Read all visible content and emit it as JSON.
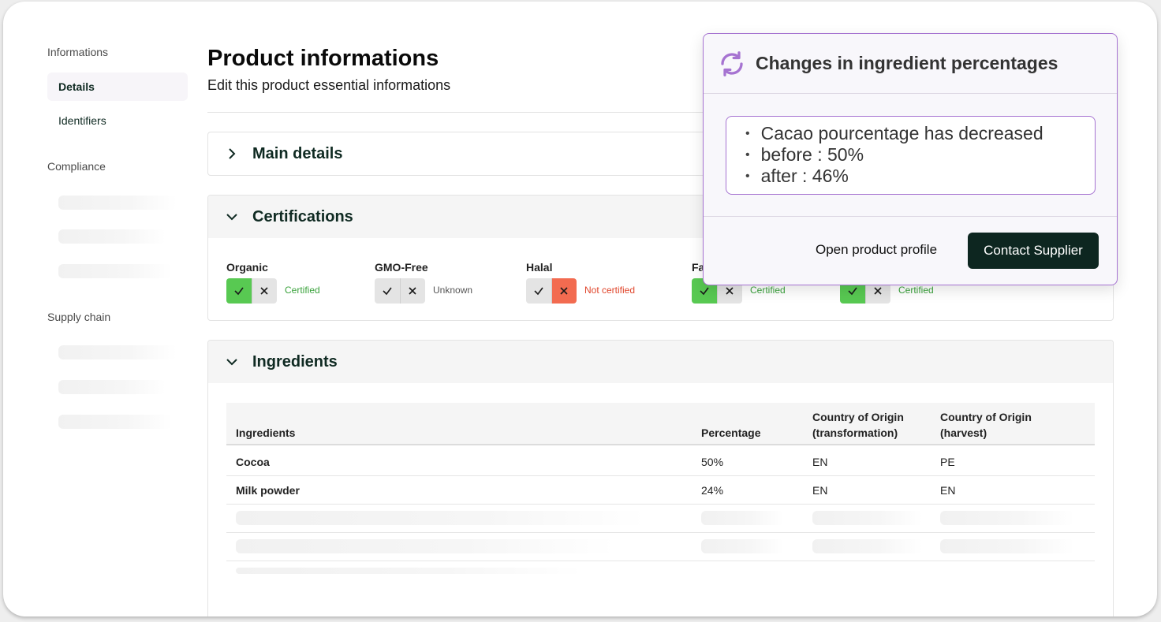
{
  "sidebar": {
    "sections": [
      {
        "label": "Informations",
        "items": [
          "Details",
          "Identifiers"
        ]
      },
      {
        "label": "Compliance"
      },
      {
        "label": "Supply chain"
      }
    ]
  },
  "header": {
    "title": "Product informations",
    "subtitle": "Edit this product essential informations"
  },
  "cards": {
    "main_details": "Main details",
    "certifications": "Certifications",
    "ingredients": "Ingredients"
  },
  "certifications": [
    {
      "label": "Organic",
      "status": "Certified",
      "state": "yes"
    },
    {
      "label": "GMO-Free",
      "status": "Unknown",
      "state": "unknown"
    },
    {
      "label": "Halal",
      "status": "Not certified",
      "state": "no"
    },
    {
      "label": "Fa",
      "status": "Certified",
      "state": "yes"
    },
    {
      "label": "",
      "status": "Certified",
      "state": "yes"
    }
  ],
  "ingredients_table": {
    "headers": [
      "Ingredients",
      "Percentage",
      "Country of Origin (transformation)",
      "Country of Origin (harvest)"
    ],
    "header_lines": {
      "transformation": [
        "Country of Origin",
        "(transformation)"
      ],
      "harvest": [
        "Country of Origin",
        "(harvest)"
      ]
    },
    "rows": [
      {
        "name": "Cocoa",
        "percentage": "50%",
        "transformation": "EN",
        "harvest": "PE"
      },
      {
        "name": "Milk powder",
        "percentage": "24%",
        "transformation": "EN",
        "harvest": "EN"
      }
    ]
  },
  "popover": {
    "title": "Changes in ingredient percentages",
    "icon": "refresh-icon",
    "changes": [
      "Cacao pourcentage has decreased",
      "before : 50%",
      "after : 46%"
    ],
    "secondary_button": "Open product profile",
    "primary_button": "Contact Supplier"
  },
  "colors": {
    "accent": "#a673d1",
    "primary_dark": "#0d2620",
    "certified_green": "#58c952",
    "not_certified_red": "#f26b50"
  }
}
